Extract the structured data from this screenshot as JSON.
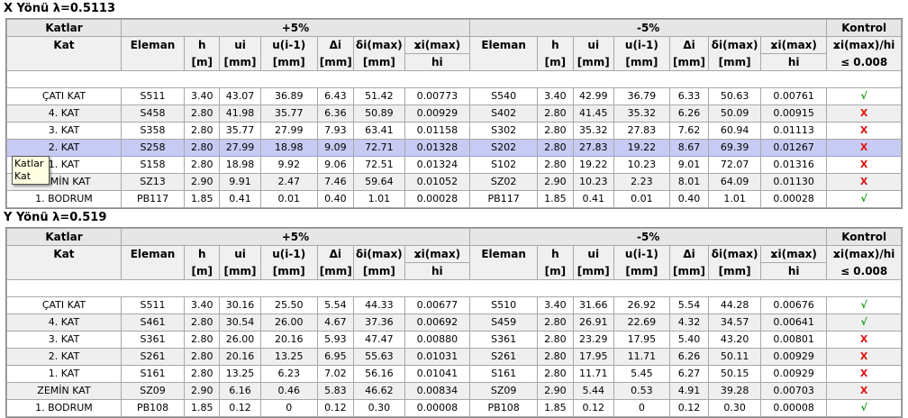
{
  "tooltip": {
    "line1": "Katlar",
    "line2": "Kat"
  },
  "colors": {
    "ok": "#119911",
    "bad": "#dd1111",
    "selected_row": "#c7cbf3"
  },
  "header": {
    "katlar": "Katlar",
    "plus": "+5%",
    "minus": "-5%",
    "kontrol": "Kontrol",
    "kat": "Kat",
    "eleman": "Eleman",
    "h": "h",
    "ui": "ui",
    "u_prev": "u(i-1)",
    "delta": "Δi",
    "dmax": "δi(max)",
    "ratio_top": "ϫi(max)",
    "ratio_bot": "hi",
    "kontrol_top": "ϫi(max)/hi",
    "kontrol_bot": "≤ 0.008",
    "unit_m": "[m]",
    "unit_mm": "[mm]"
  },
  "sections": [
    {
      "title": "X Yönü λ=0.5113",
      "rows": [
        {
          "kat": "ÇATI KAT",
          "e1": "S511",
          "h1": "3.40",
          "ui1": "43.07",
          "up1": "36.89",
          "d1": "6.43",
          "dm1": "51.42",
          "r1": "0.00773",
          "e2": "S540",
          "h2": "3.40",
          "ui2": "42.99",
          "up2": "36.79",
          "d2": "6.33",
          "dm2": "50.63",
          "r2": "0.00761",
          "k": "√",
          "ok": true
        },
        {
          "kat": "4. KAT",
          "e1": "S458",
          "h1": "2.80",
          "ui1": "41.98",
          "up1": "35.77",
          "d1": "6.36",
          "dm1": "50.89",
          "r1": "0.00929",
          "e2": "S402",
          "h2": "2.80",
          "ui2": "41.45",
          "up2": "35.32",
          "d2": "6.26",
          "dm2": "50.09",
          "r2": "0.00915",
          "k": "X",
          "ok": false
        },
        {
          "kat": "3. KAT",
          "e1": "S358",
          "h1": "2.80",
          "ui1": "35.77",
          "up1": "27.99",
          "d1": "7.93",
          "dm1": "63.41",
          "r1": "0.01158",
          "e2": "S302",
          "h2": "2.80",
          "ui2": "35.32",
          "up2": "27.83",
          "d2": "7.62",
          "dm2": "60.94",
          "r2": "0.01113",
          "k": "X",
          "ok": false
        },
        {
          "kat": "2. KAT",
          "e1": "S258",
          "h1": "2.80",
          "ui1": "27.99",
          "up1": "18.98",
          "d1": "9.09",
          "dm1": "72.71",
          "r1": "0.01328",
          "e2": "S202",
          "h2": "2.80",
          "ui2": "27.83",
          "up2": "19.22",
          "d2": "8.67",
          "dm2": "69.39",
          "r2": "0.01267",
          "k": "X",
          "ok": false,
          "selected": true
        },
        {
          "kat": "1. KAT",
          "e1": "S158",
          "h1": "2.80",
          "ui1": "18.98",
          "up1": "9.92",
          "d1": "9.06",
          "dm1": "72.51",
          "r1": "0.01324",
          "e2": "S102",
          "h2": "2.80",
          "ui2": "19.22",
          "up2": "10.23",
          "d2": "9.01",
          "dm2": "72.07",
          "r2": "0.01316",
          "k": "X",
          "ok": false
        },
        {
          "kat": "ZEMİN KAT",
          "e1": "SZ13",
          "h1": "2.90",
          "ui1": "9.91",
          "up1": "2.47",
          "d1": "7.46",
          "dm1": "59.64",
          "r1": "0.01052",
          "e2": "SZ02",
          "h2": "2.90",
          "ui2": "10.23",
          "up2": "2.23",
          "d2": "8.01",
          "dm2": "64.09",
          "r2": "0.01130",
          "k": "X",
          "ok": false
        },
        {
          "kat": "1. BODRUM",
          "e1": "PB117",
          "h1": "1.85",
          "ui1": "0.41",
          "up1": "0.01",
          "d1": "0.40",
          "dm1": "1.01",
          "r1": "0.00028",
          "e2": "PB117",
          "h2": "1.85",
          "ui2": "0.41",
          "up2": "0.01",
          "d2": "0.40",
          "dm2": "1.01",
          "r2": "0.00028",
          "k": "√",
          "ok": true
        }
      ]
    },
    {
      "title": "Y Yönü λ=0.519",
      "rows": [
        {
          "kat": "ÇATI KAT",
          "e1": "S511",
          "h1": "3.40",
          "ui1": "30.16",
          "up1": "25.50",
          "d1": "5.54",
          "dm1": "44.33",
          "r1": "0.00677",
          "e2": "S510",
          "h2": "3.40",
          "ui2": "31.66",
          "up2": "26.92",
          "d2": "5.54",
          "dm2": "44.28",
          "r2": "0.00676",
          "k": "√",
          "ok": true
        },
        {
          "kat": "4. KAT",
          "e1": "S461",
          "h1": "2.80",
          "ui1": "30.54",
          "up1": "26.00",
          "d1": "4.67",
          "dm1": "37.36",
          "r1": "0.00692",
          "e2": "S459",
          "h2": "2.80",
          "ui2": "26.91",
          "up2": "22.69",
          "d2": "4.32",
          "dm2": "34.57",
          "r2": "0.00641",
          "k": "√",
          "ok": true
        },
        {
          "kat": "3. KAT",
          "e1": "S361",
          "h1": "2.80",
          "ui1": "26.00",
          "up1": "20.16",
          "d1": "5.93",
          "dm1": "47.47",
          "r1": "0.00880",
          "e2": "S361",
          "h2": "2.80",
          "ui2": "23.29",
          "up2": "17.95",
          "d2": "5.40",
          "dm2": "43.20",
          "r2": "0.00801",
          "k": "X",
          "ok": false
        },
        {
          "kat": "2. KAT",
          "e1": "S261",
          "h1": "2.80",
          "ui1": "20.16",
          "up1": "13.25",
          "d1": "6.95",
          "dm1": "55.63",
          "r1": "0.01031",
          "e2": "S261",
          "h2": "2.80",
          "ui2": "17.95",
          "up2": "11.71",
          "d2": "6.26",
          "dm2": "50.11",
          "r2": "0.00929",
          "k": "X",
          "ok": false
        },
        {
          "kat": "1. KAT",
          "e1": "S161",
          "h1": "2.80",
          "ui1": "13.25",
          "up1": "6.23",
          "d1": "7.02",
          "dm1": "56.16",
          "r1": "0.01041",
          "e2": "S161",
          "h2": "2.80",
          "ui2": "11.71",
          "up2": "5.45",
          "d2": "6.27",
          "dm2": "50.15",
          "r2": "0.00929",
          "k": "X",
          "ok": false
        },
        {
          "kat": "ZEMİN KAT",
          "e1": "SZ09",
          "h1": "2.90",
          "ui1": "6.16",
          "up1": "0.46",
          "d1": "5.83",
          "dm1": "46.62",
          "r1": "0.00834",
          "e2": "SZ09",
          "h2": "2.90",
          "ui2": "5.44",
          "up2": "0.53",
          "d2": "4.91",
          "dm2": "39.28",
          "r2": "0.00703",
          "k": "X",
          "ok": false
        },
        {
          "kat": "1. BODRUM",
          "e1": "PB108",
          "h1": "1.85",
          "ui1": "0.12",
          "up1": "0",
          "d1": "0.12",
          "dm1": "0.30",
          "r1": "0.00008",
          "e2": "PB108",
          "h2": "1.85",
          "ui2": "0.12",
          "up2": "0",
          "d2": "0.12",
          "dm2": "0.30",
          "r2": "0.00008",
          "k": "√",
          "ok": true
        }
      ]
    }
  ]
}
